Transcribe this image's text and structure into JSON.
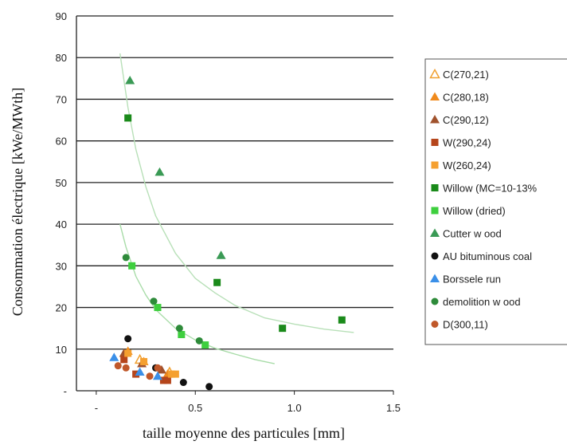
{
  "chart_data": {
    "type": "scatter",
    "xlabel": "taille moyenne des particules [mm]",
    "ylabel": "Consommation électrique [kWe/MWth]",
    "xlim": [
      -0.1,
      1.5
    ],
    "ylim": [
      0,
      90
    ],
    "x_ticks": [
      {
        "value": 0,
        "label": "-"
      },
      {
        "value": 0.5,
        "label": "0.5"
      },
      {
        "value": 1.0,
        "label": "1.0"
      },
      {
        "value": 1.5,
        "label": "1.5"
      }
    ],
    "y_ticks": [
      {
        "value": 0,
        "label": "-"
      },
      {
        "value": 10,
        "label": "10"
      },
      {
        "value": 20,
        "label": "20"
      },
      {
        "value": 30,
        "label": "30"
      },
      {
        "value": 40,
        "label": "40"
      },
      {
        "value": 50,
        "label": "50"
      },
      {
        "value": 60,
        "label": "60"
      },
      {
        "value": 70,
        "label": "70"
      },
      {
        "value": 80,
        "label": "80"
      },
      {
        "value": 90,
        "label": "90"
      }
    ],
    "grid": "horizontal",
    "legend_position": "right",
    "series": [
      {
        "name": "C(270,21)",
        "marker": "triangle-open",
        "color": "#f0a030",
        "points": [
          [
            0.22,
            7.5
          ],
          [
            0.37,
            4.5
          ]
        ]
      },
      {
        "name": "C(280,18)",
        "marker": "triangle",
        "color": "#f08a1c",
        "points": [
          [
            0.16,
            9.5
          ],
          [
            0.24,
            7.0
          ],
          [
            0.36,
            4.0
          ]
        ]
      },
      {
        "name": "C(290,12)",
        "marker": "triangle",
        "color": "#a0522d",
        "points": [
          [
            0.14,
            9.0
          ],
          [
            0.23,
            6.5
          ],
          [
            0.33,
            5.0
          ]
        ]
      },
      {
        "name": "W(290,24)",
        "marker": "square",
        "color": "#b5451b",
        "points": [
          [
            0.14,
            7.5
          ],
          [
            0.2,
            4.0
          ],
          [
            0.34,
            2.5
          ],
          [
            0.36,
            2.5
          ]
        ]
      },
      {
        "name": "W(260,24)",
        "marker": "square",
        "color": "#f5a030",
        "points": [
          [
            0.16,
            9.0
          ],
          [
            0.24,
            7.0
          ],
          [
            0.38,
            4.0
          ],
          [
            0.4,
            4.0
          ]
        ]
      },
      {
        "name": "Willow  (MC=10-13%",
        "marker": "square",
        "color": "#1a8a1a",
        "points": [
          [
            0.16,
            65.5
          ],
          [
            0.61,
            26.0
          ],
          [
            0.94,
            15.0
          ],
          [
            1.24,
            17.0
          ]
        ]
      },
      {
        "name": "Willow  (dried)",
        "marker": "square",
        "color": "#3ecf3e",
        "points": [
          [
            0.18,
            30.0
          ],
          [
            0.31,
            20.0
          ],
          [
            0.43,
            13.5
          ],
          [
            0.55,
            11.0
          ]
        ]
      },
      {
        "name": "Cutter w ood",
        "marker": "triangle",
        "color": "#3a9a55",
        "points": [
          [
            0.17,
            74.5
          ],
          [
            0.32,
            52.5
          ],
          [
            0.63,
            32.5
          ]
        ]
      },
      {
        "name": "AU bituminous coal",
        "marker": "circle",
        "color": "#111111",
        "points": [
          [
            0.16,
            12.5
          ],
          [
            0.3,
            5.5
          ],
          [
            0.44,
            2.0
          ],
          [
            0.57,
            1.0
          ]
        ]
      },
      {
        "name": "Borssele run",
        "marker": "triangle",
        "color": "#3a8fe8",
        "points": [
          [
            0.09,
            8.0
          ],
          [
            0.22,
            4.5
          ],
          [
            0.31,
            3.5
          ]
        ]
      },
      {
        "name": "demolition w ood",
        "marker": "circle",
        "color": "#2e8b3a",
        "points": [
          [
            0.15,
            32.0
          ],
          [
            0.29,
            21.5
          ],
          [
            0.42,
            15.0
          ],
          [
            0.52,
            12.0
          ]
        ]
      },
      {
        "name": "D(300,11)",
        "marker": "circle",
        "color": "#c0582a",
        "points": [
          [
            0.11,
            6.0
          ],
          [
            0.15,
            5.5
          ],
          [
            0.27,
            3.5
          ],
          [
            0.31,
            5.5
          ]
        ]
      }
    ],
    "trendlines": [
      {
        "color": "#b8e0b8",
        "points": [
          [
            0.12,
            81.0
          ],
          [
            0.16,
            68.0
          ],
          [
            0.2,
            58.0
          ],
          [
            0.25,
            49.0
          ],
          [
            0.3,
            42.0
          ],
          [
            0.4,
            33.0
          ],
          [
            0.5,
            27.0
          ],
          [
            0.6,
            23.5
          ],
          [
            0.7,
            20.5
          ],
          [
            0.85,
            17.5
          ],
          [
            1.0,
            16.0
          ],
          [
            1.15,
            14.8
          ],
          [
            1.3,
            14.0
          ]
        ]
      },
      {
        "color": "#a8dca8",
        "points": [
          [
            0.12,
            40.0
          ],
          [
            0.15,
            34.5
          ],
          [
            0.2,
            27.5
          ],
          [
            0.25,
            23.0
          ],
          [
            0.3,
            19.5
          ],
          [
            0.4,
            15.0
          ],
          [
            0.5,
            12.2
          ],
          [
            0.6,
            10.2
          ],
          [
            0.7,
            8.8
          ],
          [
            0.8,
            7.5
          ],
          [
            0.9,
            6.5
          ]
        ]
      }
    ]
  }
}
